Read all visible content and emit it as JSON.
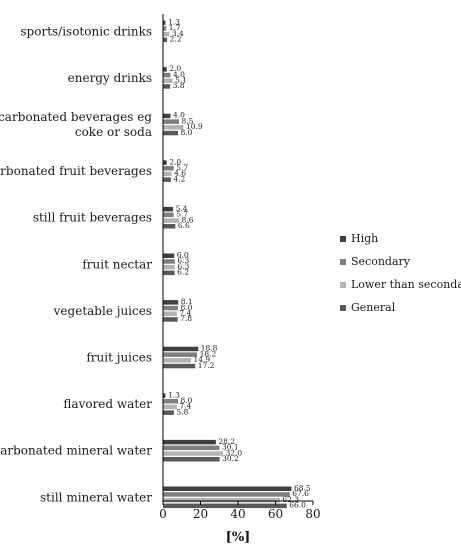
{
  "chart_data": {
    "type": "bar",
    "orientation": "horizontal",
    "categories": [
      "sports/isotonic drinks",
      "energy drinks",
      "carbonated beverages eg coke or soda",
      "carbonated fruit beverages",
      "still fruit beverages",
      "fruit nectar",
      "vegetable juices",
      "fruit juices",
      "flavored water",
      "carbonated mineral water",
      "still mineral water"
    ],
    "series": [
      {
        "name": "High",
        "color": "#404040",
        "values": [
          1.3,
          2.0,
          4.0,
          2.0,
          5.4,
          6.0,
          8.1,
          18.8,
          1.3,
          28.2,
          68.5
        ]
      },
      {
        "name": "Secondary",
        "color": "#7f7f7f",
        "values": [
          1.7,
          4.0,
          8.5,
          5.7,
          5.7,
          6.3,
          8.0,
          18.2,
          8.0,
          30.1,
          67.6
        ]
      },
      {
        "name": "Lower than secondary",
        "color": "#b3b3b3",
        "values": [
          3.4,
          5.1,
          10.9,
          4.6,
          8.6,
          6.3,
          7.4,
          14.9,
          7.4,
          32.0,
          62.3
        ]
      },
      {
        "name": "General",
        "color": "#595959",
        "values": [
          2.2,
          3.8,
          8.0,
          4.2,
          6.6,
          6.2,
          7.8,
          17.2,
          5.8,
          30.2,
          66.0
        ]
      }
    ],
    "value_labels": [
      [
        "1.3",
        "1.7",
        "3.4",
        "2.2"
      ],
      [
        "2.0",
        "4.0",
        "5.1",
        "3.8"
      ],
      [
        "4.0",
        "8.5",
        "10.9",
        "8.0"
      ],
      [
        "2.0",
        "5.7",
        "4.6",
        "4.2"
      ],
      [
        "5.4",
        "5.7",
        "8.6",
        "6.6"
      ],
      [
        "6.0",
        "6.3",
        "6.3",
        "6.2"
      ],
      [
        "8.1",
        "8.0",
        "7.4",
        "7.8"
      ],
      [
        "18.8",
        "18.2",
        "14.9",
        "17.2"
      ],
      [
        "1.3",
        "8.0",
        "7.4",
        "5.8"
      ],
      [
        "28.2",
        "30.1",
        "32.0",
        "30.2"
      ],
      [
        "68.5",
        "67.6",
        "62.3",
        "66.0"
      ]
    ],
    "xlim": [
      0,
      80
    ],
    "xticks": [
      0,
      20,
      40,
      60,
      80
    ],
    "xlabel": "[%]",
    "grid": false,
    "legend_position": "right"
  }
}
